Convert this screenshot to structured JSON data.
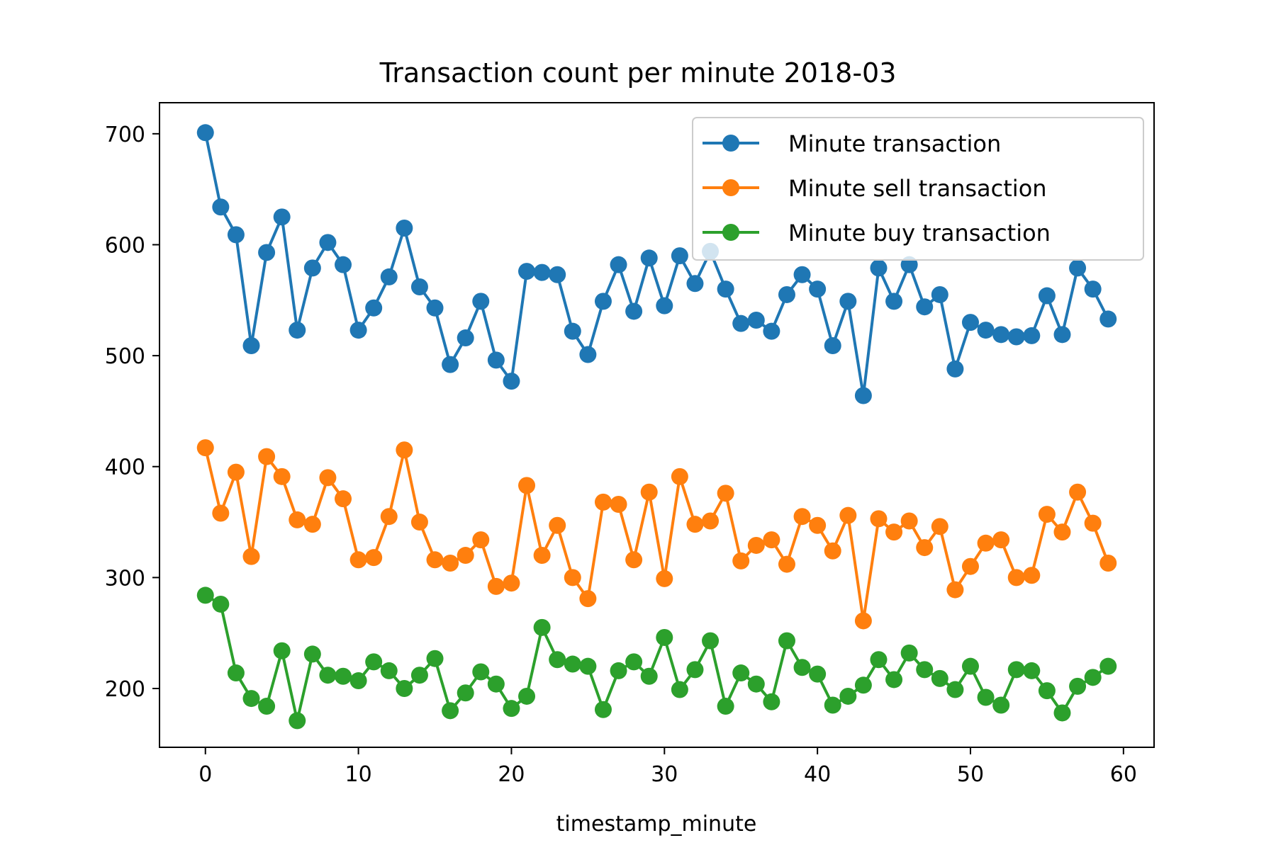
{
  "chart_data": {
    "type": "line",
    "title": "Transaction count per minute 2018-03",
    "xlabel": "timestamp_minute",
    "ylabel": "",
    "xlim": [
      -3,
      62
    ],
    "ylim": [
      147,
      728
    ],
    "xticks": [
      0,
      10,
      20,
      30,
      40,
      50,
      60
    ],
    "yticks": [
      200,
      300,
      400,
      500,
      600,
      700
    ],
    "grid": false,
    "legend_position": "top-right",
    "x": [
      0,
      1,
      2,
      3,
      4,
      5,
      6,
      7,
      8,
      9,
      10,
      11,
      12,
      13,
      14,
      15,
      16,
      17,
      18,
      19,
      20,
      21,
      22,
      23,
      24,
      25,
      26,
      27,
      28,
      29,
      30,
      31,
      32,
      33,
      34,
      35,
      36,
      37,
      38,
      39,
      40,
      41,
      42,
      43,
      44,
      45,
      46,
      47,
      48,
      49,
      50,
      51,
      52,
      53,
      54,
      55,
      56,
      57,
      58,
      59
    ],
    "series": [
      {
        "name": "Minute transaction",
        "color": "#1f77b4",
        "values": [
          701,
          634,
          609,
          509,
          593,
          625,
          523,
          579,
          602,
          582,
          523,
          543,
          571,
          615,
          562,
          543,
          492,
          516,
          549,
          496,
          477,
          576,
          575,
          573,
          522,
          501,
          549,
          582,
          540,
          588,
          545,
          590,
          565,
          594,
          560,
          529,
          532,
          522,
          555,
          573,
          560,
          509,
          549,
          464,
          579,
          549,
          582,
          544,
          555,
          488,
          530,
          523,
          519,
          517,
          518,
          554,
          519,
          579,
          560,
          533
        ]
      },
      {
        "name": "Minute sell transaction",
        "color": "#ff7f0e",
        "values": [
          417,
          358,
          395,
          319,
          409,
          391,
          352,
          348,
          390,
          371,
          316,
          318,
          355,
          415,
          350,
          316,
          313,
          320,
          334,
          292,
          295,
          383,
          320,
          347,
          300,
          281,
          368,
          366,
          316,
          377,
          299,
          391,
          348,
          351,
          376,
          315,
          329,
          334,
          312,
          355,
          347,
          324,
          356,
          261,
          353,
          341,
          351,
          327,
          346,
          289,
          310,
          331,
          334,
          300,
          302,
          357,
          341,
          377,
          349,
          313
        ]
      },
      {
        "name": "Minute buy transaction",
        "color": "#2ca02c",
        "values": [
          284,
          276,
          214,
          191,
          184,
          234,
          171,
          231,
          212,
          211,
          207,
          224,
          216,
          200,
          212,
          227,
          180,
          196,
          215,
          204,
          182,
          193,
          255,
          226,
          222,
          220,
          181,
          216,
          224,
          211,
          246,
          199,
          217,
          243,
          184,
          214,
          204,
          188,
          243,
          219,
          213,
          185,
          193,
          203,
          226,
          208,
          232,
          217,
          209,
          199,
          220,
          192,
          185,
          217,
          216,
          198,
          178,
          202,
          210,
          220
        ]
      }
    ]
  }
}
